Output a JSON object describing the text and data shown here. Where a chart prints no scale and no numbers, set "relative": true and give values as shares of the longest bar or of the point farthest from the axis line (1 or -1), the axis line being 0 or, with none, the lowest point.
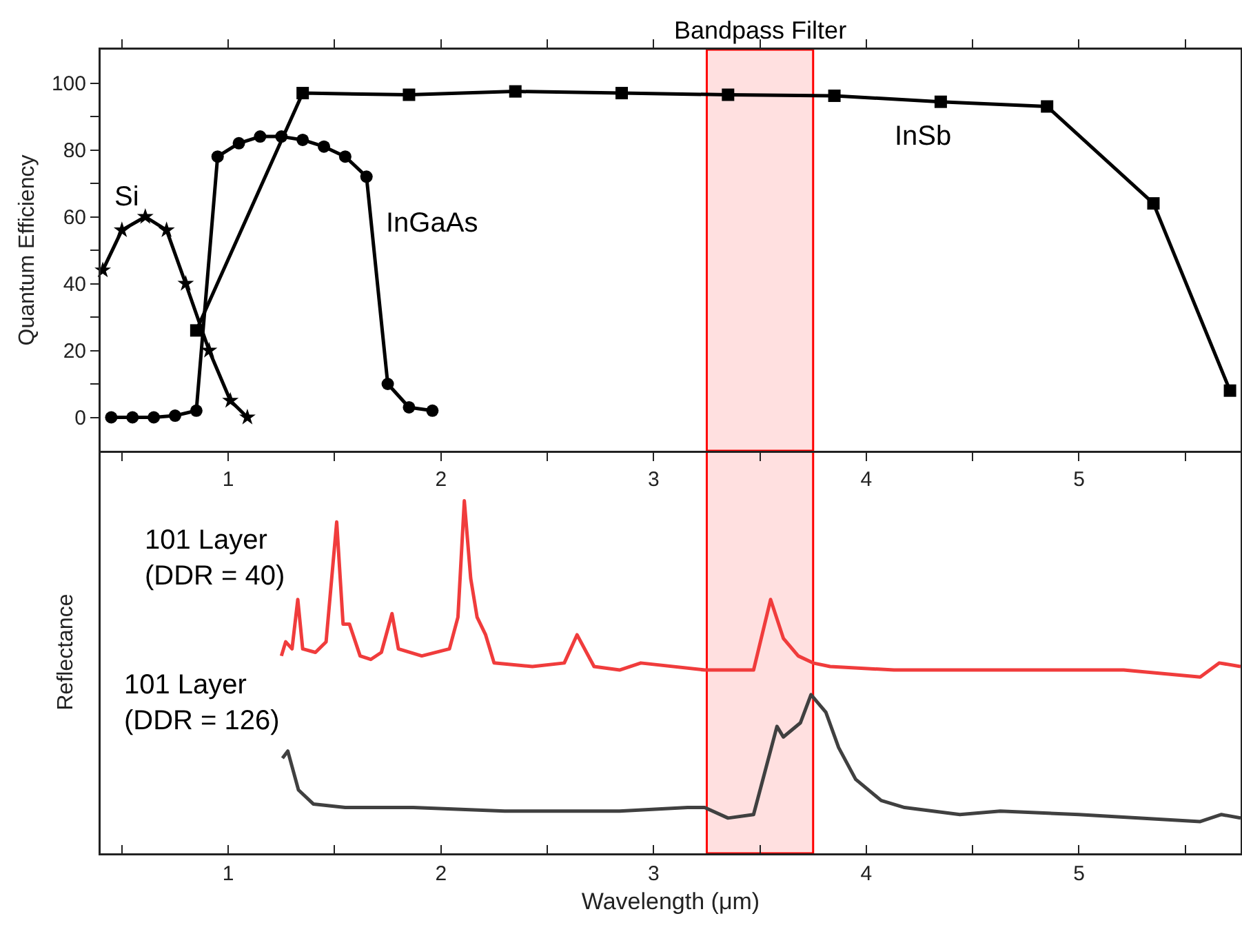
{
  "chart_data": [
    {
      "type": "line",
      "ylabel": "Quantum Efficiency",
      "xlim": [
        0.4,
        5.76
      ],
      "ylim": [
        -10,
        110
      ],
      "xticks": [
        {
          "value": 0.5,
          "label": null
        },
        1,
        {
          "value": 1.5,
          "label": null
        },
        2,
        {
          "value": 2.5,
          "label": null
        },
        3,
        {
          "value": 3.5,
          "label": null
        },
        4,
        {
          "value": 4.5,
          "label": null
        },
        5,
        {
          "value": 5.5,
          "label": null
        }
      ],
      "yticks": [
        0,
        {
          "value": 10,
          "label": null
        },
        20,
        {
          "value": 30,
          "label": null
        },
        40,
        {
          "value": 50,
          "label": null
        },
        60,
        {
          "value": 70,
          "label": null
        },
        80,
        {
          "value": 90,
          "label": null
        },
        100
      ],
      "line_style": "solid",
      "bands": [
        {
          "axis": "x",
          "from": 3.25,
          "to": 3.75,
          "label": "Bandpass Filter",
          "color": "#ff0000"
        }
      ],
      "series": [
        {
          "name": "Si",
          "color": "#000000",
          "marker": "star",
          "x": [
            0.41,
            0.5,
            0.61,
            0.71,
            0.8,
            0.91,
            1.01,
            1.09
          ],
          "values": [
            44,
            56,
            60,
            56,
            40,
            20,
            5,
            0
          ]
        },
        {
          "name": "InGaAs",
          "color": "#000000",
          "marker": "circle",
          "x": [
            0.45,
            0.55,
            0.65,
            0.75,
            0.85,
            0.95,
            1.05,
            1.15,
            1.25,
            1.35,
            1.45,
            1.55,
            1.65,
            1.75,
            1.85,
            1.96
          ],
          "values": [
            0,
            0,
            0,
            0.5,
            2,
            78,
            82,
            84,
            84,
            83,
            81,
            78,
            72,
            10,
            3,
            2
          ]
        },
        {
          "name": "InSb",
          "color": "#000000",
          "marker": "square",
          "x": [
            0.85,
            1.35,
            1.85,
            2.35,
            2.85,
            3.35,
            3.85,
            4.35,
            4.85,
            5.35,
            5.71
          ],
          "values": [
            26,
            97,
            96.5,
            97.5,
            97,
            96.5,
            96.2,
            94.4,
            93,
            64,
            8
          ]
        }
      ]
    },
    {
      "type": "line",
      "relative": true,
      "xlabel": "Wavelength (μm)",
      "ylabel": "Reflectance",
      "xlim": [
        0.4,
        5.76
      ],
      "tick_labels": "x",
      "xticks": [
        {
          "value": 0.5,
          "label": null
        },
        1,
        {
          "value": 1.5,
          "label": null
        },
        2,
        {
          "value": 2.5,
          "label": null
        },
        3,
        {
          "value": 3.5,
          "label": null
        },
        4,
        {
          "value": 4.5,
          "label": null
        },
        5,
        {
          "value": 5.5,
          "label": null
        }
      ],
      "line_style": "solid",
      "marker": "none",
      "bands": [
        {
          "axis": "x",
          "from": 3.25,
          "to": 3.75,
          "color": "#ff0000"
        }
      ],
      "series": [
        {
          "name": "101 Layer\n(DDR = 40)",
          "color": "#f03c3c",
          "x": [
            1.25,
            1.27,
            1.3,
            1.327,
            1.35,
            1.41,
            1.46,
            1.51,
            1.54,
            1.57,
            1.62,
            1.67,
            1.72,
            1.77,
            1.8,
            1.91,
            2.04,
            2.08,
            2.11,
            2.14,
            2.17,
            2.21,
            2.25,
            2.43,
            2.58,
            2.64,
            2.72,
            2.84,
            2.94,
            3.24,
            3.47,
            3.55,
            3.61,
            3.68,
            3.75,
            3.83,
            4.13,
            4.56,
            5.21,
            5.57,
            5.66,
            5.76
          ],
          "values": [
            0.56,
            0.6,
            0.58,
            0.72,
            0.58,
            0.57,
            0.6,
            0.94,
            0.65,
            0.65,
            0.56,
            0.55,
            0.57,
            0.68,
            0.58,
            0.56,
            0.58,
            0.67,
            1.0,
            0.78,
            0.67,
            0.62,
            0.54,
            0.53,
            0.54,
            0.62,
            0.53,
            0.52,
            0.54,
            0.52,
            0.52,
            0.72,
            0.61,
            0.56,
            0.54,
            0.53,
            0.52,
            0.52,
            0.52,
            0.5,
            0.54,
            0.53
          ]
        },
        {
          "name": "101 Layer\n(DDR = 126)",
          "color": "#404040",
          "x": [
            1.255,
            1.28,
            1.33,
            1.4,
            1.55,
            1.87,
            2.3,
            2.84,
            3.16,
            3.24,
            3.35,
            3.47,
            3.58,
            3.61,
            3.69,
            3.74,
            3.81,
            3.87,
            3.95,
            4.07,
            4.18,
            4.44,
            4.63,
            5.0,
            5.57,
            5.67,
            5.76
          ],
          "values": [
            0.27,
            0.29,
            0.18,
            0.14,
            0.13,
            0.13,
            0.12,
            0.12,
            0.13,
            0.13,
            0.1,
            0.11,
            0.36,
            0.33,
            0.37,
            0.45,
            0.4,
            0.3,
            0.21,
            0.15,
            0.13,
            0.11,
            0.12,
            0.11,
            0.09,
            0.11,
            0.1
          ]
        }
      ]
    }
  ]
}
